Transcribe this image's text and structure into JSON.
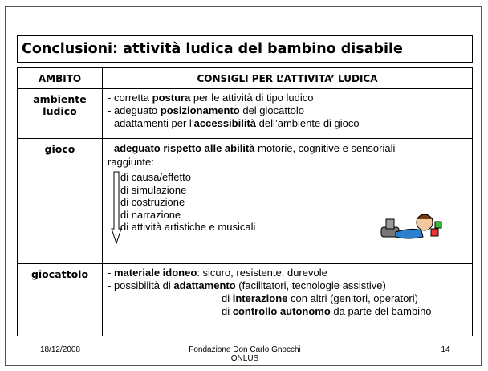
{
  "title": "Conclusioni: attività ludica del bambino disabile",
  "table": {
    "header": [
      "AMBITO",
      "CONSIGLI PER L’ATTIVITA’ LUDICA"
    ],
    "rows": [
      {
        "label": "ambiente ludico",
        "lines": [
          [
            "- corretta ",
            "postura",
            " per le attività di tipo ludico"
          ],
          [
            "- adeguato ",
            "posizionamento",
            " del giocattolo"
          ],
          [
            "- adattamenti per l’",
            "accessibilità",
            " dell’ambiente di gioco"
          ]
        ]
      },
      {
        "label": "gioco",
        "lines": [
          [
            "- ",
            "adeguato rispetto alle abilità",
            " motorie, cognitive e sensoriali raggiunte:"
          ]
        ],
        "list": [
          "di causa/effetto",
          "di simulazione",
          "di costruzione",
          "di narrazione",
          "di attività artistiche e musicali"
        ]
      },
      {
        "label": "giocattolo",
        "lines": [
          [
            "- ",
            "materiale idoneo",
            ": sicuro, resistente, durevole"
          ],
          [
            "- possibilità di ",
            "adattamento",
            " (facilitatori, tecnologie assistive)"
          ],
          [
            "di ",
            "interazione",
            " con altri (genitori, operatori)"
          ],
          [
            "di ",
            "controllo autonomo",
            " da parte del bambino"
          ]
        ]
      }
    ]
  },
  "footer": {
    "date": "18/12/2008",
    "organization": "Fondazione Don Carlo Gnocchi ONLUS",
    "page": "14"
  }
}
